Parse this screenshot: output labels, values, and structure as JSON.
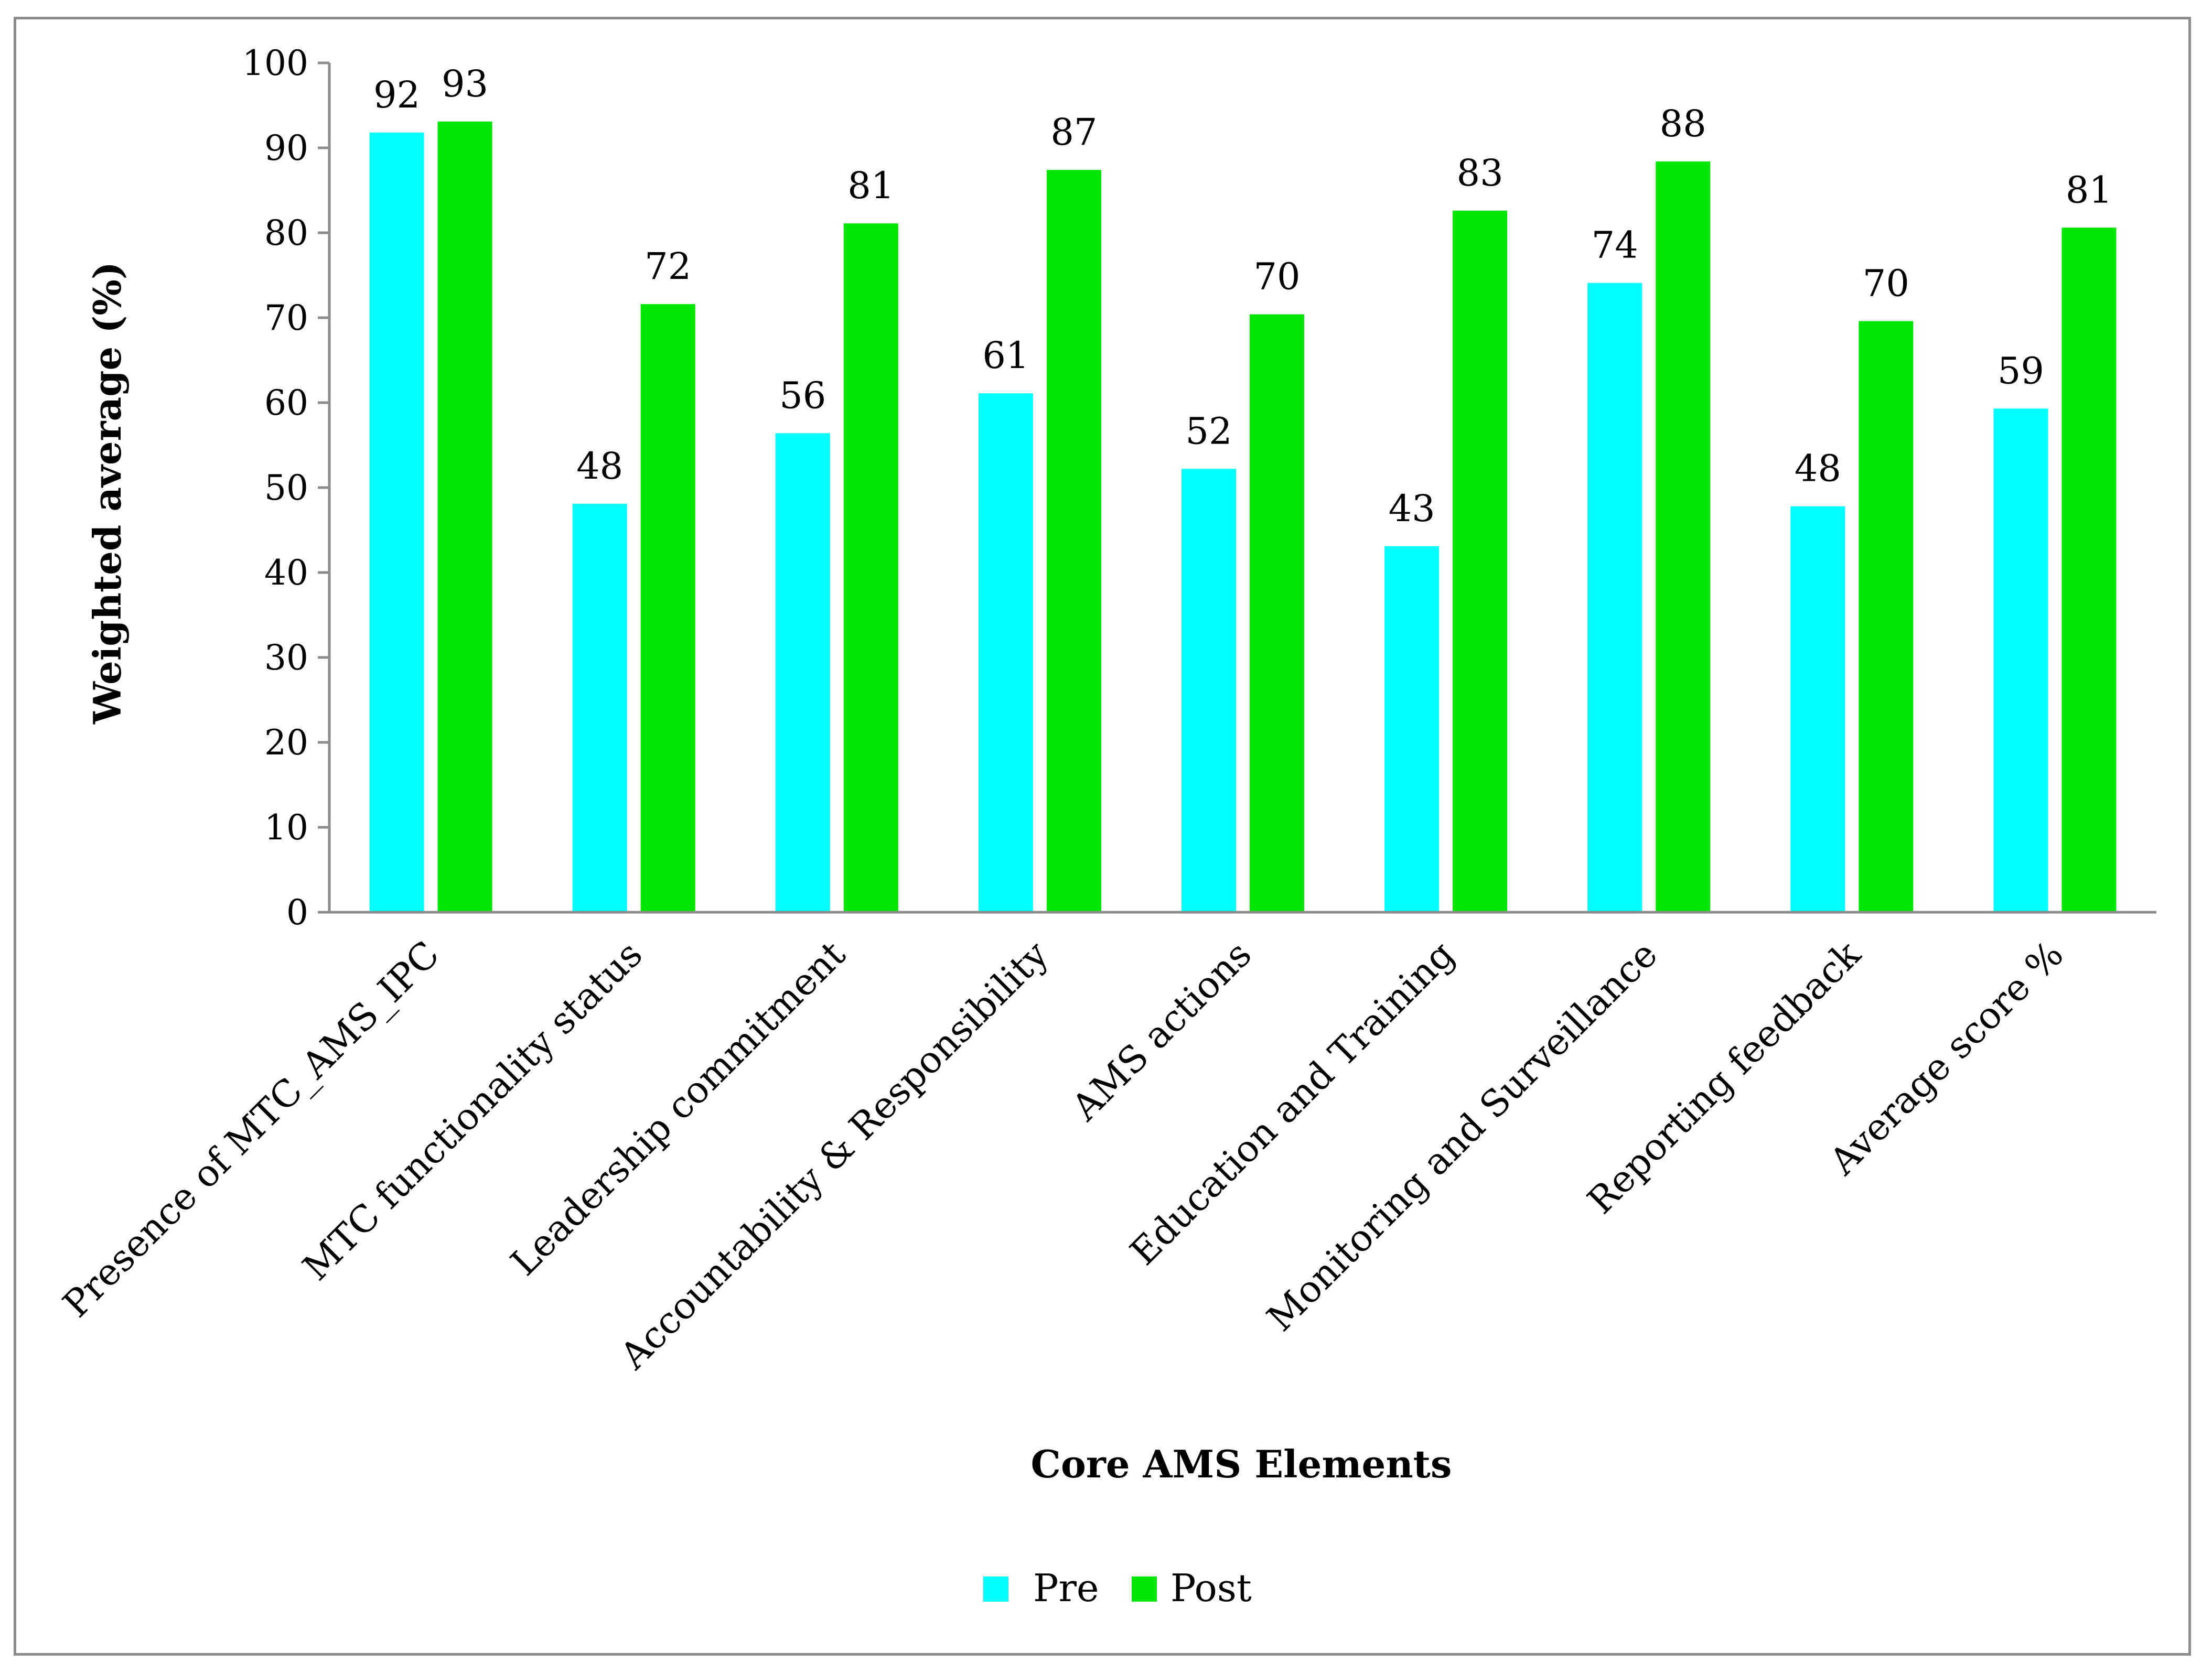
{
  "chart_data": {
    "type": "bar",
    "categories": [
      "Presence of MTC_AMS_IPC",
      "MTC functionality status",
      "Leadership commitment",
      "Accountability & Responsibility",
      "AMS actions",
      "Education and Training",
      "Monitoring and Surveillance",
      "Reporting feedback",
      "Average score %"
    ],
    "series": [
      {
        "name": "Pre",
        "color": "#00ffff",
        "values": [
          91.8,
          48.1,
          56.4,
          61.1,
          52.2,
          43.1,
          74.1,
          47.8,
          59.3
        ],
        "labels": [
          "92",
          "48",
          "56",
          "61",
          "52",
          "43",
          "74",
          "48",
          "59"
        ]
      },
      {
        "name": "Post",
        "color": "#00e600",
        "values": [
          93.1,
          71.6,
          81.1,
          87.4,
          70.4,
          82.6,
          88.4,
          69.6,
          80.6
        ],
        "labels": [
          "93",
          "72",
          "81",
          "87",
          "70",
          "83",
          "88",
          "70",
          "81"
        ]
      }
    ],
    "xlabel": "Core AMS Elements",
    "ylabel": "Weighted  average   (%)",
    "ylim": [
      0,
      100
    ],
    "yticks": [
      "0",
      "10",
      "20",
      "30",
      "40",
      "50",
      "60",
      "70",
      "80",
      "90",
      "100"
    ],
    "legend": "bottom",
    "grid": false
  }
}
